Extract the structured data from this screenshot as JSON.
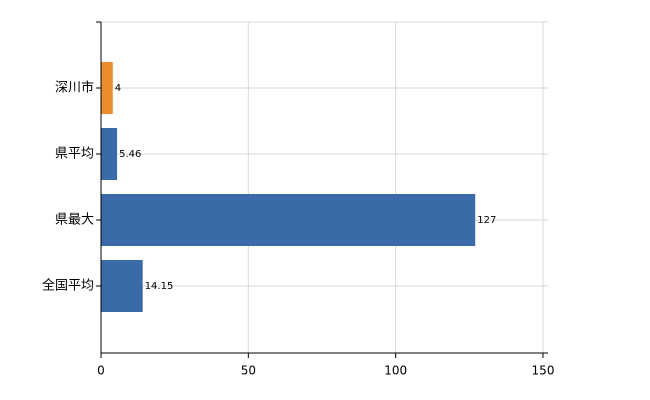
{
  "chart_data": {
    "type": "bar",
    "orientation": "horizontal",
    "categories": [
      "深川市",
      "県平均",
      "県最大",
      "全国平均"
    ],
    "values": [
      4,
      5.46,
      127,
      14.15
    ],
    "colors": [
      "#ed8b2f",
      "#3a6aa8",
      "#3a6aa8",
      "#3a6aa8"
    ],
    "xlim": [
      0,
      150
    ],
    "xticks": [
      0,
      50,
      100,
      150
    ],
    "grid": true
  }
}
